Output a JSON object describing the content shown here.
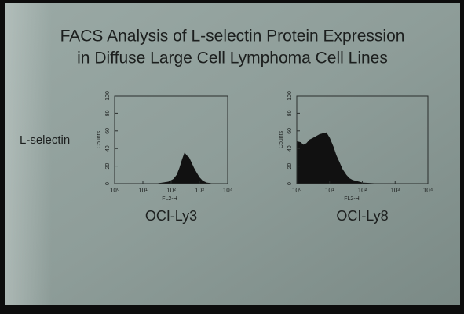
{
  "title": [
    "FACS Analysis of L-selectin Protein Expression",
    "in Diffuse Large Cell Lymphoma Cell Lines"
  ],
  "row_label": "L-selectin",
  "chart_data": [
    {
      "type": "area",
      "title": "OCI-Ly3",
      "xlabel": "FL2-H",
      "ylabel": "Counts",
      "xscale": "log",
      "color": "#111111",
      "xlim": [
        1,
        10000
      ],
      "xticks": [
        {
          "value": 1,
          "label": "10⁰"
        },
        {
          "value": 10,
          "label": "10¹"
        },
        {
          "value": 100,
          "label": "10²"
        },
        {
          "value": 1000,
          "label": "10³"
        },
        {
          "value": 10000,
          "label": "10⁴"
        }
      ],
      "ylim": [
        0,
        100
      ],
      "yticks": [
        0,
        20,
        40,
        60,
        80,
        100
      ],
      "x": [
        30,
        50,
        80,
        120,
        160,
        200,
        250,
        300,
        350,
        420,
        500,
        630,
        800,
        1000,
        1300,
        1800,
        3000
      ],
      "values": [
        0,
        1,
        2,
        5,
        10,
        18,
        28,
        35,
        32,
        30,
        25,
        18,
        12,
        7,
        3,
        1,
        0
      ]
    },
    {
      "type": "area",
      "title": "OCI-Ly8",
      "xlabel": "FL2-H",
      "ylabel": "Counts",
      "xscale": "log",
      "color": "#111111",
      "xlim": [
        1,
        10000
      ],
      "xticks": [
        {
          "value": 1,
          "label": "10⁰"
        },
        {
          "value": 10,
          "label": "10¹"
        },
        {
          "value": 100,
          "label": "10²"
        },
        {
          "value": 1000,
          "label": "10³"
        },
        {
          "value": 10000,
          "label": "10⁴"
        }
      ],
      "ylim": [
        0,
        100
      ],
      "yticks": [
        0,
        20,
        40,
        60,
        80,
        100
      ],
      "x": [
        1,
        1.3,
        1.6,
        2,
        2.5,
        3.2,
        4,
        5,
        6.3,
        8,
        10,
        13,
        16,
        20,
        25,
        32,
        40,
        50,
        63,
        80,
        100,
        160,
        300
      ],
      "values": [
        48,
        47,
        44,
        46,
        50,
        52,
        54,
        56,
        57,
        58,
        52,
        42,
        32,
        24,
        16,
        10,
        6,
        4,
        3,
        2,
        1,
        0.5,
        0
      ]
    }
  ]
}
